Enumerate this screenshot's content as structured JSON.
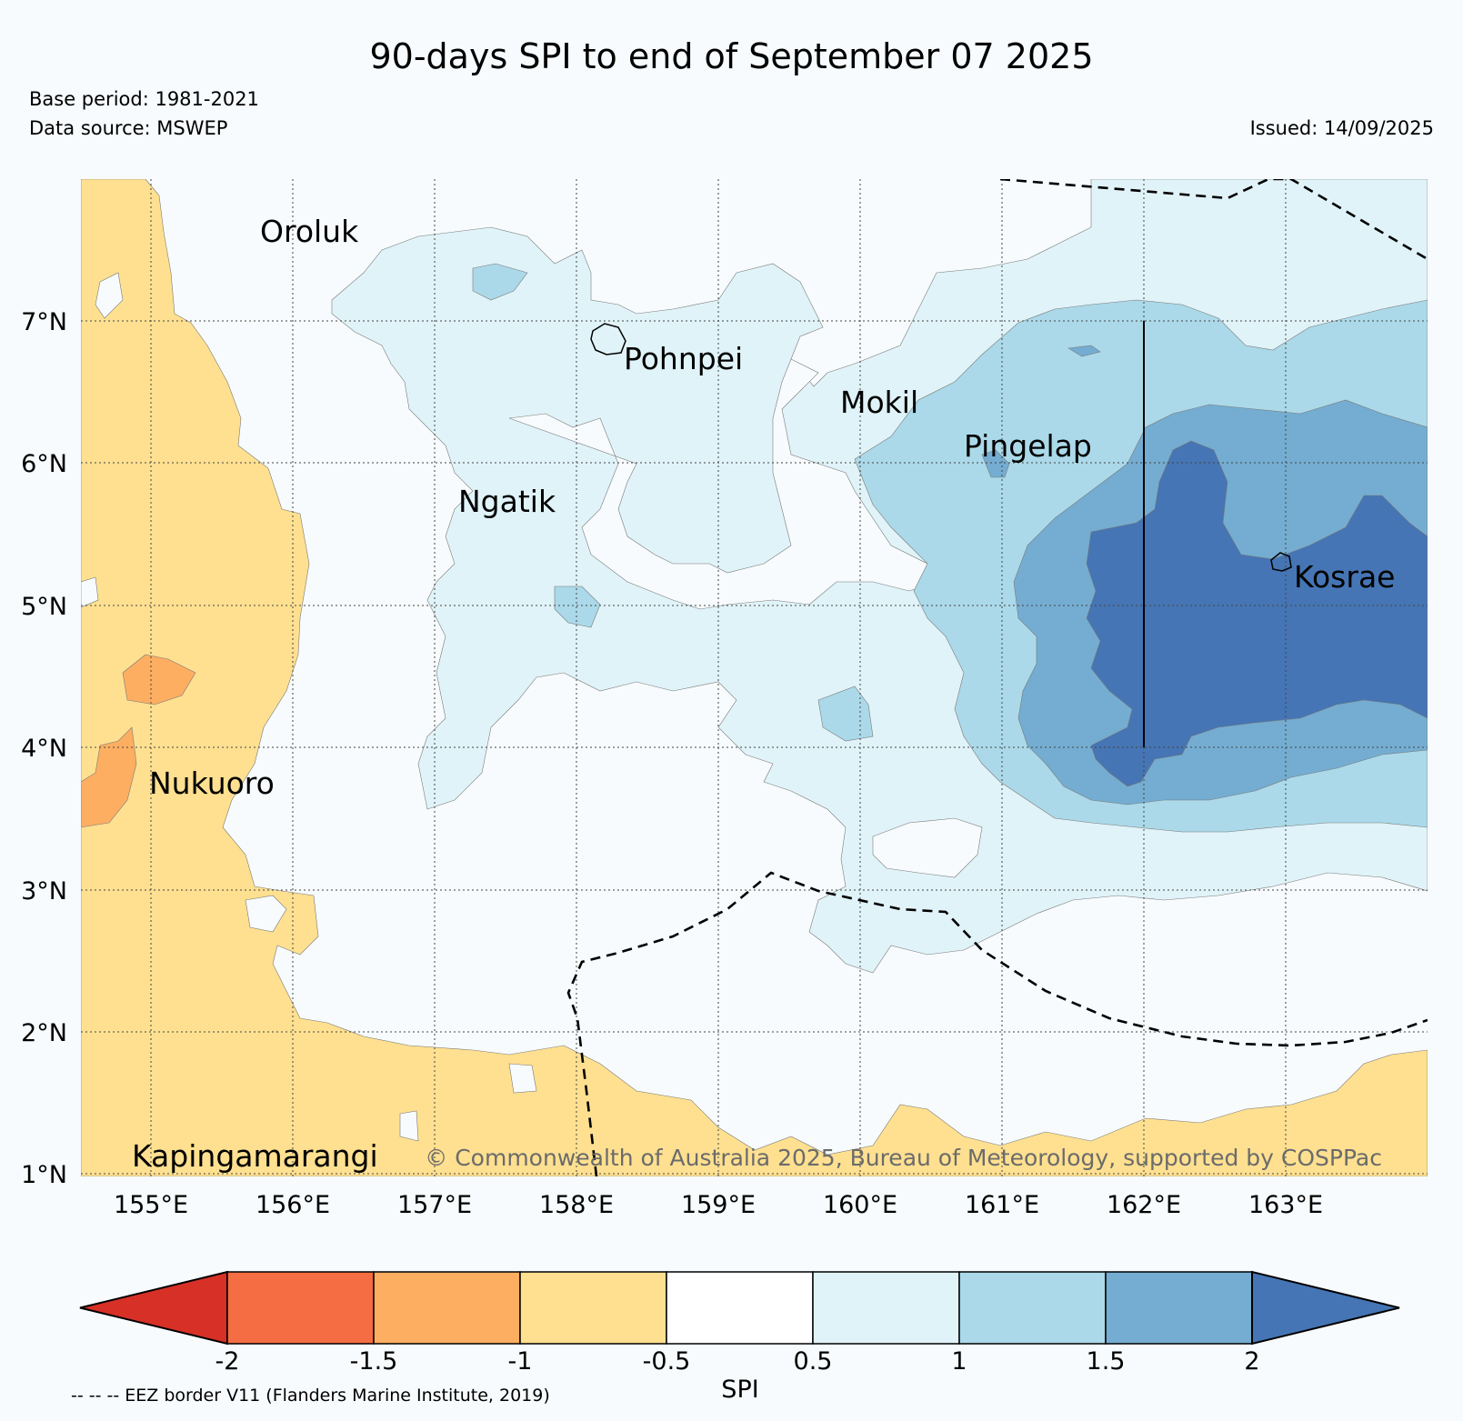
{
  "title": "90-days SPI to end of September 07 2025",
  "base_period": "Base period: 1981-2021",
  "data_source": "Data source: MSWEP",
  "issued": "Issued: 14/09/2025",
  "copyright": "© Commonwealth of Australia 2025, Bureau of Meteorology, supported by COSPPac",
  "eez_note": "-- -- -- EEZ border V11 (Flanders Marine Institute, 2019)",
  "map": {
    "lon_range": [
      154.5,
      164
    ],
    "lat_range": [
      1,
      8
    ],
    "lon_ticks": [
      "155°E",
      "156°E",
      "157°E",
      "158°E",
      "159°E",
      "160°E",
      "161°E",
      "162°E",
      "163°E"
    ],
    "lat_ticks": [
      "7°N",
      "6°N",
      "5°N",
      "4°N",
      "3°N",
      "2°N",
      "1°N"
    ],
    "gridlines": true,
    "places": [
      {
        "name": "Oroluk",
        "lon": 155.75,
        "lat": 7.7
      },
      {
        "name": "Pohnpei",
        "lon": 158.25,
        "lat": 6.9
      },
      {
        "name": "Mokil",
        "lon": 159.8,
        "lat": 6.6
      },
      {
        "name": "Pingelap",
        "lon": 160.7,
        "lat": 6.2
      },
      {
        "name": "Ngatik",
        "lon": 157.15,
        "lat": 5.8
      },
      {
        "name": "Kosrae",
        "lon": 163.0,
        "lat": 5.3
      },
      {
        "name": "Nukuoro",
        "lon": 155.0,
        "lat": 3.85
      },
      {
        "name": "Kapingamarangi",
        "lon": 154.85,
        "lat": 1.25
      }
    ]
  },
  "colorbar": {
    "label": "SPI",
    "ticks": [
      "-2",
      "-1.5",
      "-1",
      "-0.5",
      "0.5",
      "1",
      "1.5",
      "2"
    ],
    "colors": [
      "#d73027",
      "#f46d43",
      "#fdae61",
      "#fee090",
      "#ffffff",
      "#e0f3f8",
      "#abd9e9",
      "#74add1",
      "#4575b4"
    ]
  }
}
